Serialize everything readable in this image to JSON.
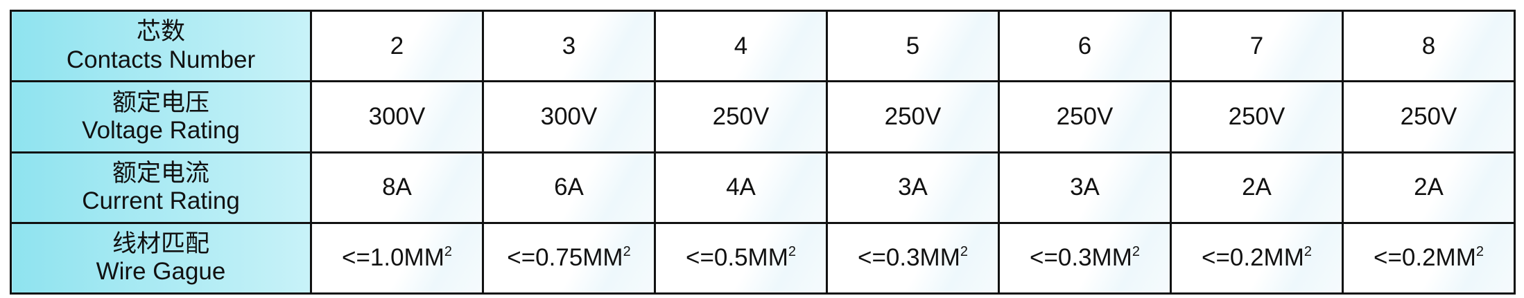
{
  "table": {
    "rows": [
      {
        "label_zh": "芯数",
        "label_en": "Contacts Number",
        "cells": [
          {
            "text": "2"
          },
          {
            "text": "3"
          },
          {
            "text": "4"
          },
          {
            "text": "5"
          },
          {
            "text": "6"
          },
          {
            "text": "7"
          },
          {
            "text": "8"
          }
        ]
      },
      {
        "label_zh": "额定电压",
        "label_en": "Voltage Rating",
        "cells": [
          {
            "text": "300V"
          },
          {
            "text": "300V"
          },
          {
            "text": "250V"
          },
          {
            "text": "250V"
          },
          {
            "text": "250V"
          },
          {
            "text": "250V"
          },
          {
            "text": "250V"
          }
        ]
      },
      {
        "label_zh": "额定电流",
        "label_en": "Current Rating",
        "cells": [
          {
            "text": "8A"
          },
          {
            "text": "6A"
          },
          {
            "text": "4A"
          },
          {
            "text": "3A"
          },
          {
            "text": "3A"
          },
          {
            "text": "2A"
          },
          {
            "text": "2A"
          }
        ]
      },
      {
        "label_zh": "线材匹配",
        "label_en": "Wire Gague",
        "cells": [
          {
            "text": "<=1.0MM",
            "sup": "2"
          },
          {
            "text": "<=0.75MM",
            "sup": "2"
          },
          {
            "text": "<=0.5MM",
            "sup": "2"
          },
          {
            "text": "<=0.3MM",
            "sup": "2"
          },
          {
            "text": "<=0.3MM",
            "sup": "2"
          },
          {
            "text": "<=0.2MM",
            "sup": "2"
          },
          {
            "text": "<=0.2MM",
            "sup": "2"
          }
        ]
      }
    ]
  }
}
